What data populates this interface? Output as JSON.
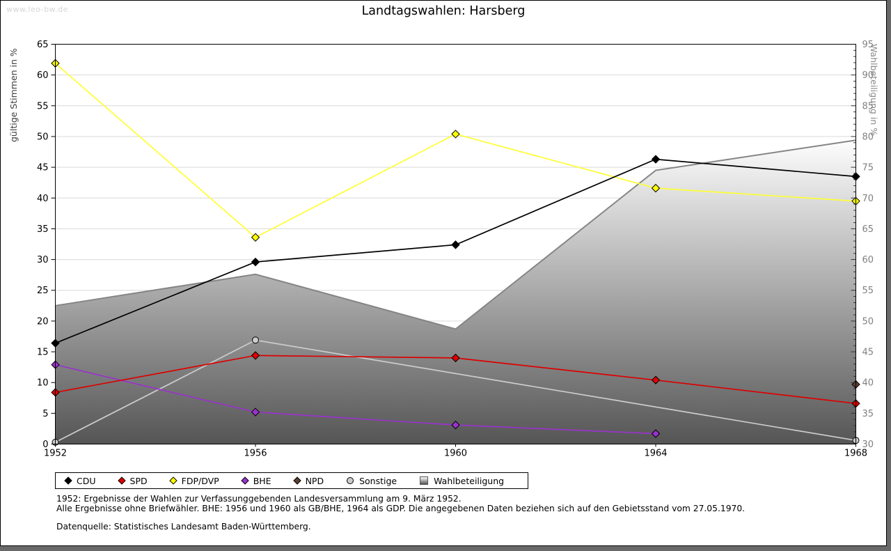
{
  "watermark": "www.leo-bw.de",
  "title": "Landtagswahlen: Harsberg",
  "chart_data": {
    "type": "line",
    "x": [
      1952,
      1956,
      1960,
      1964,
      1968
    ],
    "left_axis": {
      "label": "gültige Stimmen in %",
      "min": 0,
      "max": 65,
      "tick_step": 5
    },
    "right_axis": {
      "label": "Wahlbeteiligung in %",
      "min": 30,
      "max": 95,
      "tick_step": 5
    },
    "grid": "horizontal",
    "legend_position": "bottom",
    "series": [
      {
        "name": "CDU",
        "axis": "left",
        "marker": "diamond",
        "color": "#000000",
        "values": [
          16.4,
          29.6,
          32.4,
          46.3,
          43.5
        ]
      },
      {
        "name": "SPD",
        "axis": "left",
        "marker": "diamond",
        "color": "#dd0000",
        "values": [
          8.4,
          14.4,
          14.0,
          10.4,
          6.6
        ]
      },
      {
        "name": "FDP/DVP",
        "axis": "left",
        "marker": "diamond",
        "color": "#ffff33",
        "marker_color": "#ffff00",
        "values": [
          61.9,
          33.6,
          50.4,
          41.6,
          39.5
        ]
      },
      {
        "name": "BHE",
        "axis": "left",
        "marker": "diamond",
        "color": "#9933cc",
        "values": [
          12.9,
          5.2,
          3.1,
          1.7,
          null
        ]
      },
      {
        "name": "NPD",
        "axis": "left",
        "marker": "diamond",
        "color": "#5c4033",
        "values": [
          null,
          null,
          null,
          null,
          9.7
        ]
      },
      {
        "name": "Sonstige",
        "axis": "left",
        "marker": "circle",
        "color": "#cccccc",
        "values": [
          0.3,
          16.9,
          null,
          null,
          0.6
        ]
      },
      {
        "name": "Wahlbeteiligung",
        "axis": "right",
        "type": "area",
        "color_top": "#fdfdfd",
        "color_bottom": "#555555",
        "border_color": "#858585",
        "values": [
          52.5,
          57.6,
          48.7,
          74.5,
          79.4
        ]
      }
    ]
  },
  "footnotes": {
    "line1": "1952: Ergebnisse der Wahlen zur Verfassunggebenden Landesversammlung am 9. März 1952.",
    "line2": "Alle Ergebnisse ohne Briefwähler. BHE: 1956 und 1960 als GB/BHE, 1964 als GDP. Die angegebenen Daten beziehen sich auf den Gebietsstand vom 27.05.1970.",
    "source": "Datenquelle: Statistisches Landesamt Baden-Württemberg."
  }
}
